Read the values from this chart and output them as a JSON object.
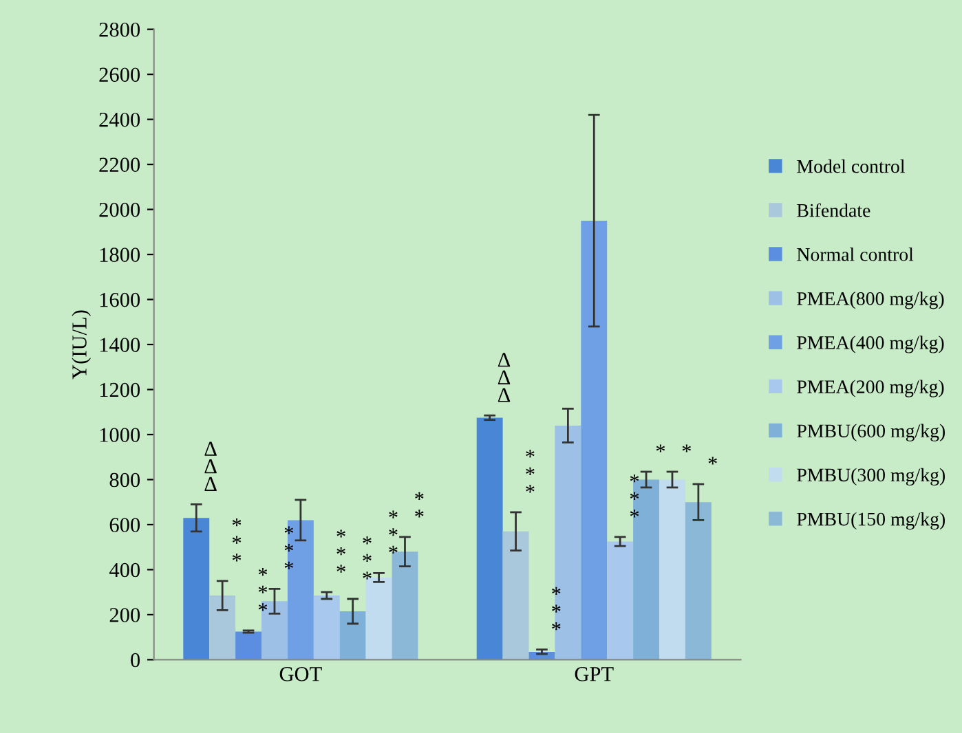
{
  "chart_data": {
    "type": "bar",
    "ylabel": "Y(IU/L)",
    "categories": [
      "GOT",
      "GPT"
    ],
    "ylim": [
      0,
      2800
    ],
    "yticks": [
      0,
      200,
      400,
      600,
      800,
      1000,
      1200,
      1400,
      1600,
      1800,
      2000,
      2200,
      2400,
      2600,
      2800
    ],
    "grid": false,
    "legend": "right",
    "series": [
      {
        "name": "Model control",
        "color": "#4a86d6",
        "values": [
          630,
          1075
        ],
        "errors": [
          60,
          10
        ],
        "value_labels": [
          "ΔΔΔ",
          "ΔΔΔ"
        ]
      },
      {
        "name": "Bifendate",
        "color": "#a9c8dc",
        "values": [
          285,
          570
        ],
        "errors": [
          65,
          85
        ],
        "value_labels": [
          "***",
          "***"
        ]
      },
      {
        "name": "Normal control",
        "color": "#5b8ee0",
        "values": [
          125,
          35
        ],
        "errors": [
          5,
          10
        ],
        "value_labels": [
          "***",
          "***"
        ]
      },
      {
        "name": "PMEA(800 mg/kg)",
        "color": "#9cc0e6",
        "values": [
          260,
          1040
        ],
        "errors": [
          55,
          75
        ],
        "value_labels": [
          "***",
          null
        ]
      },
      {
        "name": "PMEA(400 mg/kg)",
        "color": "#6fa0e6",
        "values": [
          620,
          1950
        ],
        "errors": [
          90,
          470
        ],
        "value_labels": [
          null,
          null
        ]
      },
      {
        "name": "PMEA(200 mg/kg)",
        "color": "#a8c8ee",
        "values": [
          285,
          525
        ],
        "errors": [
          15,
          20
        ],
        "value_labels": [
          "***",
          "***"
        ]
      },
      {
        "name": "PMBU(600 mg/kg)",
        "color": "#7eb0d8",
        "values": [
          215,
          800
        ],
        "errors": [
          55,
          35
        ],
        "value_labels": [
          "***",
          "*"
        ]
      },
      {
        "name": "PMBU(300 mg/kg)",
        "color": "#c0dcee",
        "values": [
          365,
          800
        ],
        "errors": [
          20,
          35
        ],
        "value_labels": [
          "***",
          "*"
        ]
      },
      {
        "name": "PMBU(150 mg/kg)",
        "color": "#8cb8d8",
        "values": [
          480,
          700
        ],
        "errors": [
          65,
          80
        ],
        "value_labels": [
          "**",
          "*"
        ]
      }
    ]
  }
}
